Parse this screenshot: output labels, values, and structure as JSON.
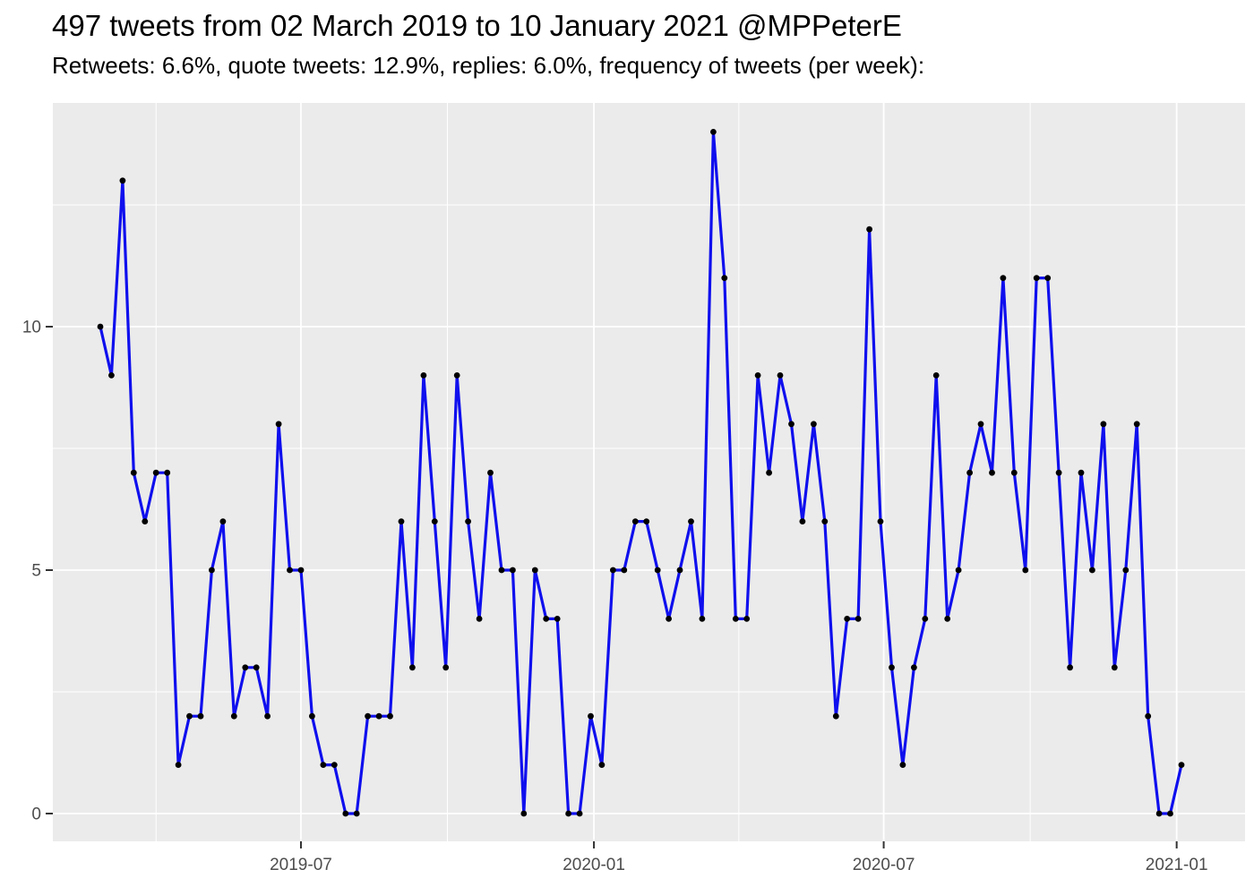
{
  "header": {
    "title": "497 tweets from 02 March 2019 to 10 January 2021 @MPPeterE",
    "subtitle": "Retweets: 6.6%, quote tweets: 12.9%, replies: 6.0%, frequency of tweets (per week):"
  },
  "chart_data": {
    "type": "line",
    "title": "497 tweets from 02 March 2019 to 10 January 2021 @MPPeterE",
    "subtitle": "Retweets: 6.6%, quote tweets: 12.9%, replies: 6.0%, frequency of tweets (per week):",
    "xlabel": "",
    "ylabel": "",
    "total_tweets": 497,
    "account": "@MPPeterE",
    "retweets_pct": "6.6%",
    "quote_tweets_pct": "12.9%",
    "replies_pct": "6.0%",
    "x": [
      "2019-02-25",
      "2019-03-04",
      "2019-03-11",
      "2019-03-18",
      "2019-03-25",
      "2019-04-01",
      "2019-04-08",
      "2019-04-15",
      "2019-04-22",
      "2019-04-29",
      "2019-05-06",
      "2019-05-13",
      "2019-05-20",
      "2019-05-27",
      "2019-06-03",
      "2019-06-10",
      "2019-06-17",
      "2019-06-24",
      "2019-07-01",
      "2019-07-08",
      "2019-07-15",
      "2019-07-22",
      "2019-07-29",
      "2019-08-05",
      "2019-08-12",
      "2019-08-19",
      "2019-08-26",
      "2019-09-02",
      "2019-09-09",
      "2019-09-16",
      "2019-09-23",
      "2019-09-30",
      "2019-10-07",
      "2019-10-14",
      "2019-10-21",
      "2019-10-28",
      "2019-11-04",
      "2019-11-11",
      "2019-11-18",
      "2019-11-25",
      "2019-12-02",
      "2019-12-09",
      "2019-12-16",
      "2019-12-23",
      "2019-12-30",
      "2020-01-06",
      "2020-01-13",
      "2020-01-20",
      "2020-01-27",
      "2020-02-03",
      "2020-02-10",
      "2020-02-17",
      "2020-02-24",
      "2020-03-02",
      "2020-03-09",
      "2020-03-16",
      "2020-03-23",
      "2020-03-30",
      "2020-04-06",
      "2020-04-13",
      "2020-04-20",
      "2020-04-27",
      "2020-05-04",
      "2020-05-11",
      "2020-05-18",
      "2020-05-25",
      "2020-06-01",
      "2020-06-08",
      "2020-06-15",
      "2020-06-22",
      "2020-06-29",
      "2020-07-06",
      "2020-07-13",
      "2020-07-20",
      "2020-07-27",
      "2020-08-03",
      "2020-08-10",
      "2020-08-17",
      "2020-08-24",
      "2020-08-31",
      "2020-09-07",
      "2020-09-14",
      "2020-09-21",
      "2020-09-28",
      "2020-10-05",
      "2020-10-12",
      "2020-10-19",
      "2020-10-26",
      "2020-11-02",
      "2020-11-09",
      "2020-11-16",
      "2020-11-23",
      "2020-11-30",
      "2020-12-07",
      "2020-12-14",
      "2020-12-21",
      "2020-12-28",
      "2021-01-04"
    ],
    "values": [
      10,
      9,
      13,
      7,
      6,
      7,
      7,
      1,
      2,
      2,
      5,
      6,
      2,
      3,
      3,
      2,
      8,
      5,
      5,
      2,
      1,
      1,
      0,
      0,
      2,
      2,
      2,
      6,
      3,
      9,
      6,
      3,
      9,
      6,
      4,
      7,
      5,
      5,
      0,
      5,
      4,
      4,
      0,
      0,
      2,
      1,
      5,
      5,
      6,
      6,
      5,
      4,
      5,
      6,
      4,
      14,
      11,
      4,
      4,
      9,
      7,
      9,
      8,
      6,
      8,
      6,
      2,
      4,
      4,
      12,
      6,
      3,
      1,
      3,
      4,
      9,
      4,
      5,
      7,
      8,
      7,
      11,
      7,
      5,
      11,
      11,
      7,
      3,
      7,
      5,
      8,
      3,
      5,
      8,
      2,
      0,
      0,
      1
    ],
    "x_tick_labels": [
      "2019-07",
      "2020-01",
      "2020-07",
      "2021-01"
    ],
    "x_major_ticks": [
      "2019-07-01",
      "2020-01-01",
      "2020-07-01",
      "2021-01-01"
    ],
    "x_minor_ticks": [
      "2019-04-01",
      "2019-10-01",
      "2020-04-01",
      "2020-10-01"
    ],
    "y_ticks": [
      0,
      5,
      10
    ],
    "y_minor_ticks": [
      2.5,
      7.5,
      12.5
    ],
    "ylim": [
      -0.7,
      14.7
    ],
    "grid": true,
    "legend_position": "none",
    "colors": {
      "line": "#0F0FEE",
      "point": "#000000",
      "panel_background": "#EBEBEB",
      "gridline": "#FFFFFF",
      "axis_text": "#4D4D4D",
      "tick_mark": "#333333",
      "title_text": "#000000"
    }
  }
}
